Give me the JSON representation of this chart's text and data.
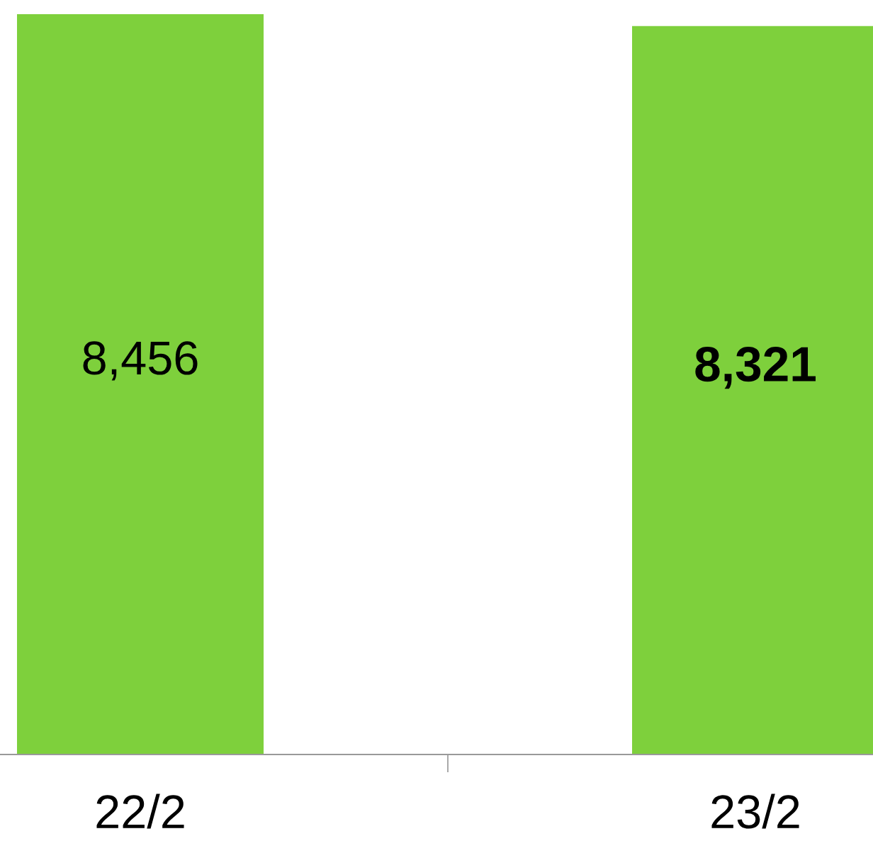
{
  "chart_data": {
    "type": "bar",
    "categories": [
      "22/2",
      "23/2"
    ],
    "values": [
      8456,
      8321
    ],
    "color": "#7ed03c",
    "value_labels": [
      "8,456",
      "8,321"
    ]
  }
}
